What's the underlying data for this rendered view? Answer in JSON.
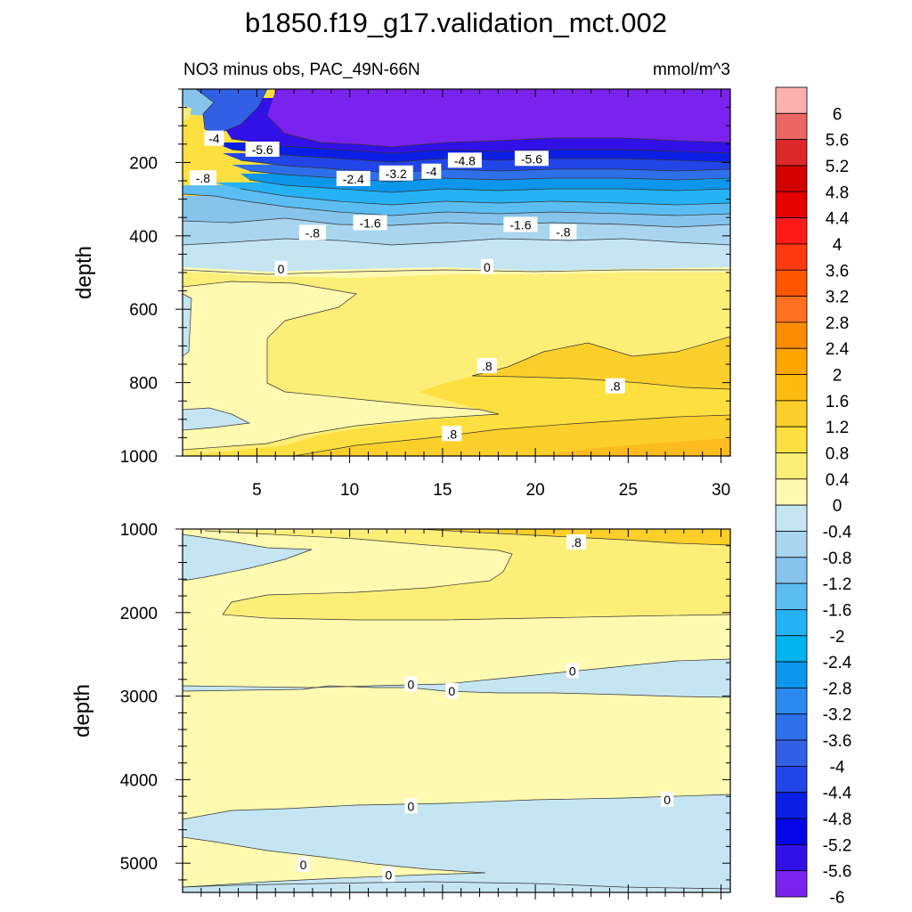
{
  "title": "b1850.f19_g17.validation_mct.002",
  "subtitle_left": "NO3 minus obs, PAC_49N-66N",
  "subtitle_right": "mmol/m^3",
  "chart_data": [
    {
      "type": "contour",
      "panel": "upper",
      "ylabel": "depth",
      "xlim": [
        1,
        30.5
      ],
      "ylim": [
        1000,
        0
      ],
      "x_ticks": [
        "5",
        "10",
        "15",
        "20",
        "25",
        "30"
      ],
      "x_tick_values": [
        5,
        10,
        15,
        20,
        25,
        30
      ],
      "y_ticks": [
        "200",
        "400",
        "600",
        "800",
        "1000"
      ],
      "y_tick_values": [
        200,
        400,
        600,
        800,
        1000
      ],
      "contour_labels": [
        {
          "text": "-4",
          "x": 2.7,
          "depth": 135
        },
        {
          "text": "-5.6",
          "x": 5.3,
          "depth": 165
        },
        {
          "text": "-.8",
          "x": 2.1,
          "depth": 243
        },
        {
          "text": "-2.4",
          "x": 10.2,
          "depth": 245
        },
        {
          "text": "-3.2",
          "x": 12.5,
          "depth": 230
        },
        {
          "text": "-4",
          "x": 14.4,
          "depth": 225
        },
        {
          "text": "-4.8",
          "x": 16.2,
          "depth": 195
        },
        {
          "text": "-5.6",
          "x": 19.8,
          "depth": 190
        },
        {
          "text": "-.8",
          "x": 8.0,
          "depth": 392
        },
        {
          "text": "-1.6",
          "x": 11.1,
          "depth": 365
        },
        {
          "text": "-1.6",
          "x": 19.2,
          "depth": 370
        },
        {
          "text": "-.8",
          "x": 21.5,
          "depth": 390
        },
        {
          "text": "0",
          "x": 6.3,
          "depth": 490
        },
        {
          "text": "0",
          "x": 17.4,
          "depth": 485
        },
        {
          "text": ".8",
          "x": 17.4,
          "depth": 755
        },
        {
          "text": ".8",
          "x": 24.3,
          "depth": 810
        },
        {
          "text": ".8",
          "x": 15.5,
          "depth": 940
        }
      ]
    },
    {
      "type": "contour",
      "panel": "lower",
      "ylabel": "depth",
      "xlim": [
        1,
        30.5
      ],
      "ylim": [
        5350,
        1000
      ],
      "y_ticks": [
        "1000",
        "2000",
        "3000",
        "4000",
        "5000"
      ],
      "y_tick_values": [
        1000,
        2000,
        3000,
        4000,
        5000
      ],
      "contour_labels": [
        {
          "text": ".8",
          "x": 22.2,
          "depth": 1160
        },
        {
          "text": "0",
          "x": 13.3,
          "depth": 2860
        },
        {
          "text": "0",
          "x": 15.5,
          "depth": 2940
        },
        {
          "text": "0",
          "x": 22.0,
          "depth": 2700
        },
        {
          "text": "0",
          "x": 13.3,
          "depth": 4320
        },
        {
          "text": "0",
          "x": 27.1,
          "depth": 4240
        },
        {
          "text": "0",
          "x": 7.5,
          "depth": 5020
        },
        {
          "text": "0",
          "x": 12.1,
          "depth": 5140
        }
      ]
    }
  ],
  "colorbar": {
    "labels": [
      "6",
      "5.6",
      "5.2",
      "4.8",
      "4.4",
      "4",
      "3.6",
      "3.2",
      "2.8",
      "2.4",
      "2",
      "1.6",
      "1.2",
      "0.8",
      "0.4",
      "0",
      "-0.4",
      "-0.8",
      "-1.2",
      "-1.6",
      "-2",
      "-2.4",
      "-2.8",
      "-3.2",
      "-3.6",
      "-4",
      "-4.4",
      "-4.8",
      "-5.2",
      "-5.6",
      "-6"
    ],
    "colors": [
      "#fbb0b0",
      "#ec6666",
      "#dc2828",
      "#d20000",
      "#e60000",
      "#ff1a1a",
      "#ff3a10",
      "#ff5500",
      "#ff7020",
      "#ff8c00",
      "#ffa500",
      "#ffbb10",
      "#fccf2a",
      "#fde040",
      "#fdee78",
      "#fffab0",
      "#c5e5f3",
      "#a9d5ef",
      "#86c4ec",
      "#5cbdf3",
      "#24b2f5",
      "#00b4ef",
      "#0c96ec",
      "#2c8aee",
      "#2f6fe9",
      "#3260e4",
      "#2245e8",
      "#0b1ee6",
      "#0606e8",
      "#3210e8",
      "#7a22ee"
    ]
  }
}
